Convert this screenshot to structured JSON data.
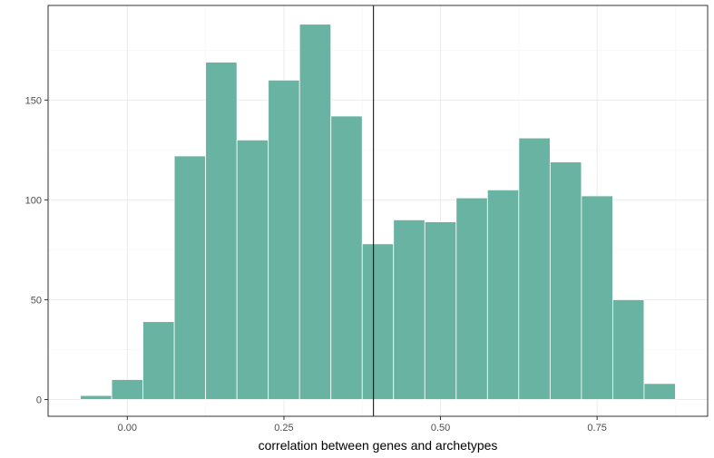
{
  "chart_data": {
    "type": "bar",
    "subtype": "histogram",
    "title": "",
    "xlabel": "correlation between genes and archetypes",
    "ylabel": "",
    "bin_width": 0.05,
    "bins": [
      {
        "start": -0.075,
        "end": -0.025,
        "count": 2
      },
      {
        "start": -0.025,
        "end": 0.025,
        "count": 10
      },
      {
        "start": 0.025,
        "end": 0.075,
        "count": 39
      },
      {
        "start": 0.075,
        "end": 0.125,
        "count": 122
      },
      {
        "start": 0.125,
        "end": 0.175,
        "count": 169
      },
      {
        "start": 0.175,
        "end": 0.225,
        "count": 130
      },
      {
        "start": 0.225,
        "end": 0.275,
        "count": 160
      },
      {
        "start": 0.275,
        "end": 0.325,
        "count": 188
      },
      {
        "start": 0.325,
        "end": 0.375,
        "count": 142
      },
      {
        "start": 0.375,
        "end": 0.425,
        "count": 78
      },
      {
        "start": 0.425,
        "end": 0.475,
        "count": 90
      },
      {
        "start": 0.475,
        "end": 0.525,
        "count": 89
      },
      {
        "start": 0.525,
        "end": 0.575,
        "count": 101
      },
      {
        "start": 0.575,
        "end": 0.625,
        "count": 105
      },
      {
        "start": 0.625,
        "end": 0.675,
        "count": 131
      },
      {
        "start": 0.675,
        "end": 0.725,
        "count": 119
      },
      {
        "start": 0.725,
        "end": 0.775,
        "count": 102
      },
      {
        "start": 0.775,
        "end": 0.825,
        "count": 50
      },
      {
        "start": 0.825,
        "end": 0.875,
        "count": 8
      }
    ],
    "vline": 0.393,
    "xlim": [
      -0.1265,
      0.9265
    ],
    "ylim": [
      -8.4,
      197.4
    ],
    "x_ticks": [
      {
        "value": 0.0,
        "label": "0.00"
      },
      {
        "value": 0.25,
        "label": "0.25"
      },
      {
        "value": 0.5,
        "label": "0.50"
      },
      {
        "value": 0.75,
        "label": "0.75"
      }
    ],
    "y_ticks": [
      {
        "value": 0,
        "label": "0"
      },
      {
        "value": 50,
        "label": "50"
      },
      {
        "value": 100,
        "label": "100"
      },
      {
        "value": 150,
        "label": "150"
      }
    ],
    "grid": true,
    "colors": {
      "bar_fill": "#69b3a2",
      "bar_stroke": "#ffffff",
      "vline": "#000000",
      "grid_major": "#ebebeb",
      "grid_minor": "#f5f5f5",
      "panel_border": "#333333"
    }
  }
}
